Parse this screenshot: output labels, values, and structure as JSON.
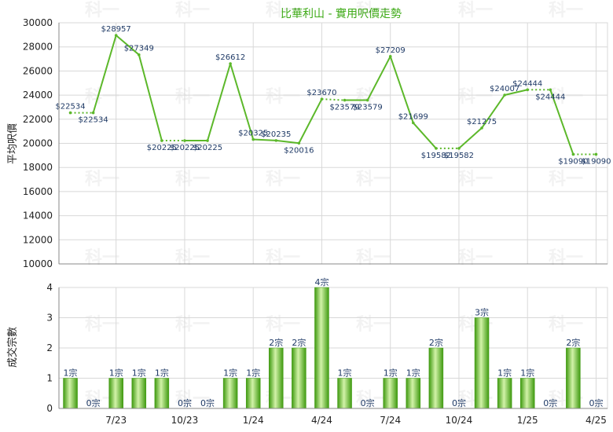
{
  "chart_data": [
    {
      "type": "line",
      "title": "比華利山 - 實用呎價走勢",
      "ylabel": "平均呎價",
      "ylim": [
        10000,
        30000
      ],
      "yticks": [
        10000,
        12000,
        14000,
        16000,
        18000,
        20000,
        22000,
        24000,
        26000,
        28000,
        30000
      ],
      "grid": true,
      "xtick_labels": [
        "7/23",
        "10/23",
        "1/24",
        "4/24",
        "7/24",
        "10/24",
        "1/25",
        "4/25"
      ],
      "series": [
        {
          "values": [
            22534,
            22534,
            28957,
            27349,
            20225,
            20225,
            20225,
            26612,
            20325,
            20235,
            20016,
            23670,
            23579,
            23579,
            27209,
            21699,
            19582,
            19582,
            21275,
            24007,
            24444,
            24444,
            19090,
            19090
          ],
          "labels": [
            "$22534",
            "$22534",
            "$28957",
            "$27349",
            "$20225",
            "$20225",
            "$20225",
            "$26612",
            "$20325",
            "$20235",
            "$20016",
            "$23670",
            "$23579",
            "$23579",
            "$27209",
            "$21699",
            "$19582",
            "$19582",
            "$21275",
            "$24007",
            "$24444",
            "$24444",
            "$19090",
            "$19090"
          ],
          "imputed": [
            false,
            true,
            false,
            false,
            false,
            true,
            false,
            false,
            false,
            false,
            false,
            false,
            true,
            false,
            false,
            false,
            false,
            true,
            false,
            false,
            false,
            true,
            false,
            true
          ]
        }
      ]
    },
    {
      "type": "bar",
      "ylabel": "成交宗數",
      "ylim": [
        0,
        4
      ],
      "yticks": [
        0,
        1,
        2,
        3,
        4
      ],
      "grid": true,
      "xtick_labels": [
        "7/23",
        "10/23",
        "1/24",
        "4/24",
        "7/24",
        "10/24",
        "1/25",
        "4/25"
      ],
      "series": [
        {
          "values": [
            1,
            0,
            1,
            1,
            1,
            0,
            0,
            1,
            1,
            2,
            2,
            4,
            1,
            0,
            1,
            1,
            2,
            0,
            3,
            1,
            1,
            0,
            2,
            0
          ],
          "labels": [
            "1宗",
            "0宗",
            "1宗",
            "1宗",
            "1宗",
            "0宗",
            "0宗",
            "1宗",
            "1宗",
            "2宗",
            "2宗",
            "4宗",
            "1宗",
            "0宗",
            "1宗",
            "1宗",
            "2宗",
            "0宗",
            "3宗",
            "1宗",
            "1宗",
            "0宗",
            "2宗",
            "0宗"
          ]
        }
      ]
    }
  ],
  "colors": {
    "line": "#5cb82a",
    "bar_dark": "#3f9a10",
    "bar_light": "#d2f2a8",
    "title": "#3daa16",
    "grid": "#d8d8d8"
  },
  "watermark": "科一"
}
